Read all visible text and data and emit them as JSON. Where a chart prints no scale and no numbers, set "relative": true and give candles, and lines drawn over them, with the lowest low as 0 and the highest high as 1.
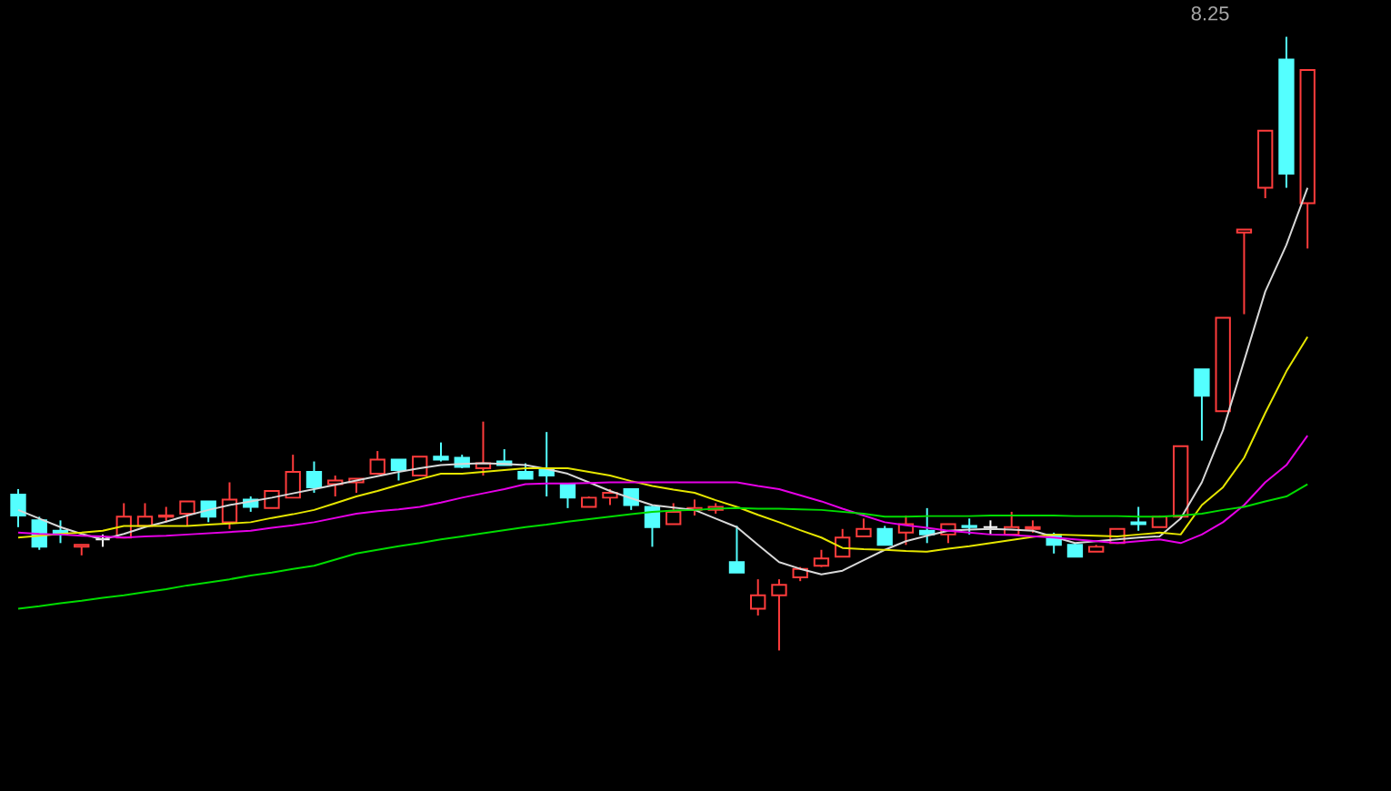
{
  "chart_data": {
    "type": "candlestick",
    "relative": true,
    "categories": [
      null,
      null,
      null,
      null,
      null,
      null,
      null,
      null,
      null,
      null,
      null,
      null,
      null,
      null,
      null,
      null,
      null,
      null,
      null,
      null,
      null,
      null,
      null,
      null,
      null,
      null,
      null,
      null,
      null,
      null,
      null,
      null,
      null,
      null,
      null,
      null,
      null,
      null,
      null,
      null,
      null,
      null,
      null,
      null,
      null,
      null,
      null,
      null,
      null,
      null,
      null,
      null,
      null,
      null,
      null,
      null,
      null,
      null,
      null,
      null,
      null,
      null
    ],
    "ohlc": [
      [
        0.254,
        0.263,
        0.201,
        0.22
      ],
      [
        0.212,
        0.218,
        0.164,
        0.169
      ],
      [
        0.195,
        0.212,
        0.175,
        0.189
      ],
      [
        0.169,
        0.172,
        0.155,
        0.172
      ],
      [
        0.181,
        0.189,
        0.169,
        0.181
      ],
      [
        0.184,
        0.24,
        0.184,
        0.218
      ],
      [
        0.203,
        0.24,
        0.201,
        0.218
      ],
      [
        0.218,
        0.234,
        0.209,
        0.22
      ],
      [
        0.223,
        0.243,
        0.203,
        0.243
      ],
      [
        0.243,
        0.243,
        0.209,
        0.218
      ],
      [
        0.209,
        0.274,
        0.198,
        0.246
      ],
      [
        0.246,
        0.251,
        0.226,
        0.234
      ],
      [
        0.232,
        0.26,
        0.232,
        0.26
      ],
      [
        0.249,
        0.319,
        0.249,
        0.291
      ],
      [
        0.291,
        0.308,
        0.257,
        0.266
      ],
      [
        0.271,
        0.285,
        0.251,
        0.277
      ],
      [
        0.274,
        0.28,
        0.257,
        0.28
      ],
      [
        0.288,
        0.325,
        0.288,
        0.311
      ],
      [
        0.311,
        0.311,
        0.277,
        0.294
      ],
      [
        0.285,
        0.316,
        0.285,
        0.316
      ],
      [
        0.316,
        0.339,
        0.308,
        0.311
      ],
      [
        0.314,
        0.319,
        0.297,
        0.299
      ],
      [
        0.297,
        0.373,
        0.285,
        0.305
      ],
      [
        0.308,
        0.328,
        0.302,
        0.302
      ],
      [
        0.291,
        0.305,
        0.28,
        0.28
      ],
      [
        0.297,
        0.356,
        0.251,
        0.285
      ],
      [
        0.271,
        0.271,
        0.232,
        0.249
      ],
      [
        0.234,
        0.251,
        0.234,
        0.249
      ],
      [
        0.249,
        0.263,
        0.237,
        0.257
      ],
      [
        0.263,
        0.263,
        0.229,
        0.237
      ],
      [
        0.234,
        0.237,
        0.169,
        0.201
      ],
      [
        0.206,
        0.24,
        0.206,
        0.226
      ],
      [
        0.229,
        0.246,
        0.22,
        0.232
      ],
      [
        0.229,
        0.24,
        0.223,
        0.234
      ],
      [
        0.144,
        0.203,
        0.127,
        0.127
      ],
      [
        0.068,
        0.116,
        0.057,
        0.09
      ],
      [
        0.09,
        0.116,
        0.0,
        0.107
      ],
      [
        0.119,
        0.136,
        0.113,
        0.133
      ],
      [
        0.138,
        0.164,
        0.136,
        0.15
      ],
      [
        0.153,
        0.198,
        0.153,
        0.184
      ],
      [
        0.186,
        0.215,
        0.186,
        0.198
      ],
      [
        0.198,
        0.203,
        0.172,
        0.172
      ],
      [
        0.192,
        0.22,
        0.172,
        0.206
      ],
      [
        0.195,
        0.232,
        0.175,
        0.189
      ],
      [
        0.189,
        0.206,
        0.175,
        0.206
      ],
      [
        0.203,
        0.215,
        0.189,
        0.201
      ],
      [
        0.201,
        0.212,
        0.189,
        0.201
      ],
      [
        0.189,
        0.226,
        0.189,
        0.201
      ],
      [
        0.198,
        0.212,
        0.192,
        0.201
      ],
      [
        0.189,
        0.192,
        0.158,
        0.172
      ],
      [
        0.172,
        0.175,
        0.153,
        0.153
      ],
      [
        0.161,
        0.172,
        0.161,
        0.169
      ],
      [
        0.175,
        0.198,
        0.175,
        0.198
      ],
      [
        0.209,
        0.234,
        0.195,
        0.206
      ],
      [
        0.201,
        0.22,
        0.201,
        0.218
      ],
      [
        0.218,
        0.333,
        0.215,
        0.333
      ],
      [
        0.458,
        0.458,
        0.342,
        0.415
      ],
      [
        0.39,
        0.542,
        0.39,
        0.542
      ],
      [
        0.681,
        0.686,
        0.548,
        0.686
      ],
      [
        0.754,
        0.847,
        0.737,
        0.847
      ],
      [
        0.963,
        1.0,
        0.754,
        0.777
      ],
      [
        0.729,
        0.946,
        0.655,
        0.946
      ]
    ],
    "colors": [
      "#54ffff",
      "#54ffff",
      "#54ffff",
      "#ff3c3c",
      "#ffffff",
      "#ff3c3c",
      "#ff3c3c",
      "#ff3c3c",
      "#ff3c3c",
      "#54ffff",
      "#ff3c3c",
      "#54ffff",
      "#ff3c3c",
      "#ff3c3c",
      "#54ffff",
      "#ff3c3c",
      "#ff3c3c",
      "#ff3c3c",
      "#54ffff",
      "#ff3c3c",
      "#54ffff",
      "#54ffff",
      "#ff3c3c",
      "#54ffff",
      "#54ffff",
      "#54ffff",
      "#54ffff",
      "#ff3c3c",
      "#ff3c3c",
      "#54ffff",
      "#54ffff",
      "#ff3c3c",
      "#ff3c3c",
      "#ff3c3c",
      "#54ffff",
      "#ff3c3c",
      "#ff3c3c",
      "#ff3c3c",
      "#ff3c3c",
      "#ff3c3c",
      "#ff3c3c",
      "#54ffff",
      "#ff3c3c",
      "#54ffff",
      "#ff3c3c",
      "#54ffff",
      "#ffffff",
      "#ff3c3c",
      "#ff3c3c",
      "#54ffff",
      "#54ffff",
      "#ff3c3c",
      "#ff3c3c",
      "#54ffff",
      "#ff3c3c",
      "#ff3c3c",
      "#54ffff",
      "#ff3c3c",
      "#ff3c3c",
      "#ff3c3c",
      "#54ffff",
      "#ff3c3c"
    ],
    "series": [
      {
        "type": "line",
        "color": "#d8d8d8",
        "values": [
          0.229,
          0.215,
          0.201,
          0.19,
          0.181,
          0.19,
          0.201,
          0.21,
          0.22,
          0.229,
          0.237,
          0.243,
          0.249,
          0.256,
          0.263,
          0.27,
          0.277,
          0.284,
          0.291,
          0.297,
          0.302,
          0.304,
          0.305,
          0.304,
          0.302,
          0.296,
          0.288,
          0.274,
          0.26,
          0.248,
          0.237,
          0.233,
          0.229,
          0.215,
          0.201,
          0.172,
          0.144,
          0.133,
          0.124,
          0.13,
          0.147,
          0.164,
          0.178,
          0.187,
          0.195,
          0.197,
          0.198,
          0.197,
          0.195,
          0.185,
          0.175,
          0.178,
          0.181,
          0.184,
          0.186,
          0.215,
          0.274,
          0.359,
          0.472,
          0.585,
          0.661,
          0.754
        ]
      },
      {
        "type": "line",
        "color": "#e6e600",
        "values": [
          0.184,
          0.187,
          0.19,
          0.192,
          0.195,
          0.203,
          0.203,
          0.203,
          0.203,
          0.205,
          0.207,
          0.209,
          0.216,
          0.222,
          0.229,
          0.24,
          0.251,
          0.26,
          0.27,
          0.279,
          0.288,
          0.288,
          0.291,
          0.294,
          0.297,
          0.297,
          0.297,
          0.291,
          0.285,
          0.276,
          0.268,
          0.262,
          0.257,
          0.245,
          0.234,
          0.221,
          0.209,
          0.196,
          0.184,
          0.167,
          0.165,
          0.164,
          0.162,
          0.161,
          0.166,
          0.17,
          0.175,
          0.18,
          0.185,
          0.189,
          0.188,
          0.187,
          0.186,
          0.189,
          0.192,
          0.189,
          0.237,
          0.266,
          0.314,
          0.387,
          0.455,
          0.511
        ]
      },
      {
        "type": "line",
        "color": "#e600e6",
        "values": [
          0.192,
          0.19,
          0.189,
          0.187,
          0.186,
          0.184,
          0.186,
          0.187,
          0.189,
          0.191,
          0.193,
          0.195,
          0.2,
          0.204,
          0.209,
          0.216,
          0.223,
          0.227,
          0.23,
          0.234,
          0.241,
          0.249,
          0.256,
          0.263,
          0.271,
          0.272,
          0.272,
          0.273,
          0.274,
          0.274,
          0.274,
          0.274,
          0.274,
          0.274,
          0.274,
          0.268,
          0.263,
          0.253,
          0.243,
          0.231,
          0.22,
          0.209,
          0.204,
          0.2,
          0.195,
          0.192,
          0.189,
          0.188,
          0.186,
          0.184,
          0.181,
          0.178,
          0.175,
          0.178,
          0.181,
          0.175,
          0.189,
          0.209,
          0.237,
          0.274,
          0.302,
          0.35
        ]
      },
      {
        "type": "line",
        "color": "#00dc00",
        "values": [
          0.068,
          0.072,
          0.077,
          0.081,
          0.086,
          0.09,
          0.095,
          0.1,
          0.106,
          0.111,
          0.116,
          0.122,
          0.127,
          0.133,
          0.138,
          0.148,
          0.158,
          0.164,
          0.17,
          0.175,
          0.181,
          0.186,
          0.191,
          0.196,
          0.201,
          0.205,
          0.21,
          0.214,
          0.218,
          0.222,
          0.226,
          0.228,
          0.229,
          0.231,
          0.232,
          0.231,
          0.231,
          0.23,
          0.229,
          0.226,
          0.223,
          0.218,
          0.218,
          0.219,
          0.219,
          0.219,
          0.22,
          0.22,
          0.22,
          0.22,
          0.219,
          0.219,
          0.219,
          0.218,
          0.218,
          0.22,
          0.223,
          0.229,
          0.234,
          0.243,
          0.251,
          0.271
        ]
      }
    ],
    "annotations": [
      "8.25"
    ]
  }
}
